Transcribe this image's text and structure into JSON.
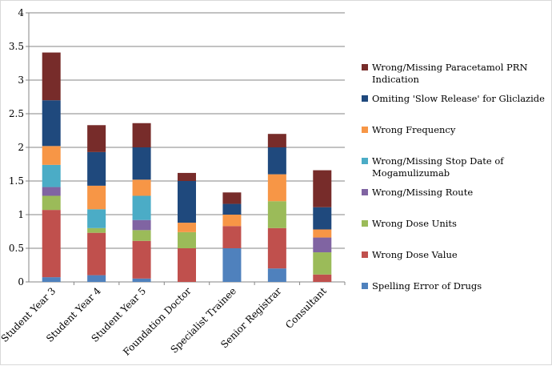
{
  "chart_data": {
    "type": "bar",
    "stacked": true,
    "categories": [
      "Student Year 3",
      "Student Year 4",
      "Student Year 5",
      "Foundation Doctor",
      "Specialist Trainee",
      "Senior Registrar",
      "Consultant"
    ],
    "ylim": [
      0,
      4
    ],
    "yticks": [
      "0",
      "0.5",
      "1",
      "1.5",
      "2",
      "2.5",
      "3",
      "3.5",
      "4"
    ],
    "grid": true,
    "legend_position": "right",
    "series": [
      {
        "name": "Spelling Error of Drugs",
        "color": "#4f81bd",
        "values": [
          0.07,
          0.1,
          0.05,
          0,
          0.5,
          0.2,
          0
        ]
      },
      {
        "name": "Wrong Dose Value",
        "color": "#c0504d",
        "values": [
          1.0,
          0.63,
          0.56,
          0.5,
          0.33,
          0.6,
          0.11
        ]
      },
      {
        "name": "Wrong Dose Units",
        "color": "#9bbb59",
        "values": [
          0.21,
          0.07,
          0.16,
          0.24,
          0,
          0.4,
          0.33
        ]
      },
      {
        "name": "Wrong/Missing Route",
        "color": "#8064a2",
        "values": [
          0.13,
          0,
          0.15,
          0,
          0,
          0,
          0.22
        ]
      },
      {
        "name": "Wrong/Missing Stop Date of Mogamulizumab",
        "color": "#4bacc6",
        "values": [
          0.33,
          0.28,
          0.36,
          0,
          0,
          0,
          0
        ]
      },
      {
        "name": "Wrong Frequency",
        "color": "#f79646",
        "values": [
          0.28,
          0.35,
          0.24,
          0.14,
          0.17,
          0.4,
          0.12
        ]
      },
      {
        "name": "Omiting 'Slow Release' for Gliclazide",
        "color": "#1f497d",
        "values": [
          0.68,
          0.5,
          0.48,
          0.62,
          0.16,
          0.4,
          0.33
        ]
      },
      {
        "name": "Wrong/Missing Paracetamol PRN Indication",
        "color": "#772c2a",
        "values": [
          0.71,
          0.4,
          0.36,
          0.12,
          0.17,
          0.2,
          0.55
        ]
      }
    ],
    "legend_lines": [
      [
        "Wrong/Missing Paracetamol PRN",
        "Indication"
      ],
      [
        "Omiting 'Slow Release' for Gliclazide"
      ],
      [
        "Wrong Frequency"
      ],
      [
        "Wrong/Missing Stop Date of",
        "Mogamulizumab"
      ],
      [
        "Wrong/Missing Route"
      ],
      [
        "Wrong Dose Units"
      ],
      [
        "Wrong Dose Value"
      ],
      [
        "Spelling Error of Drugs"
      ]
    ]
  }
}
